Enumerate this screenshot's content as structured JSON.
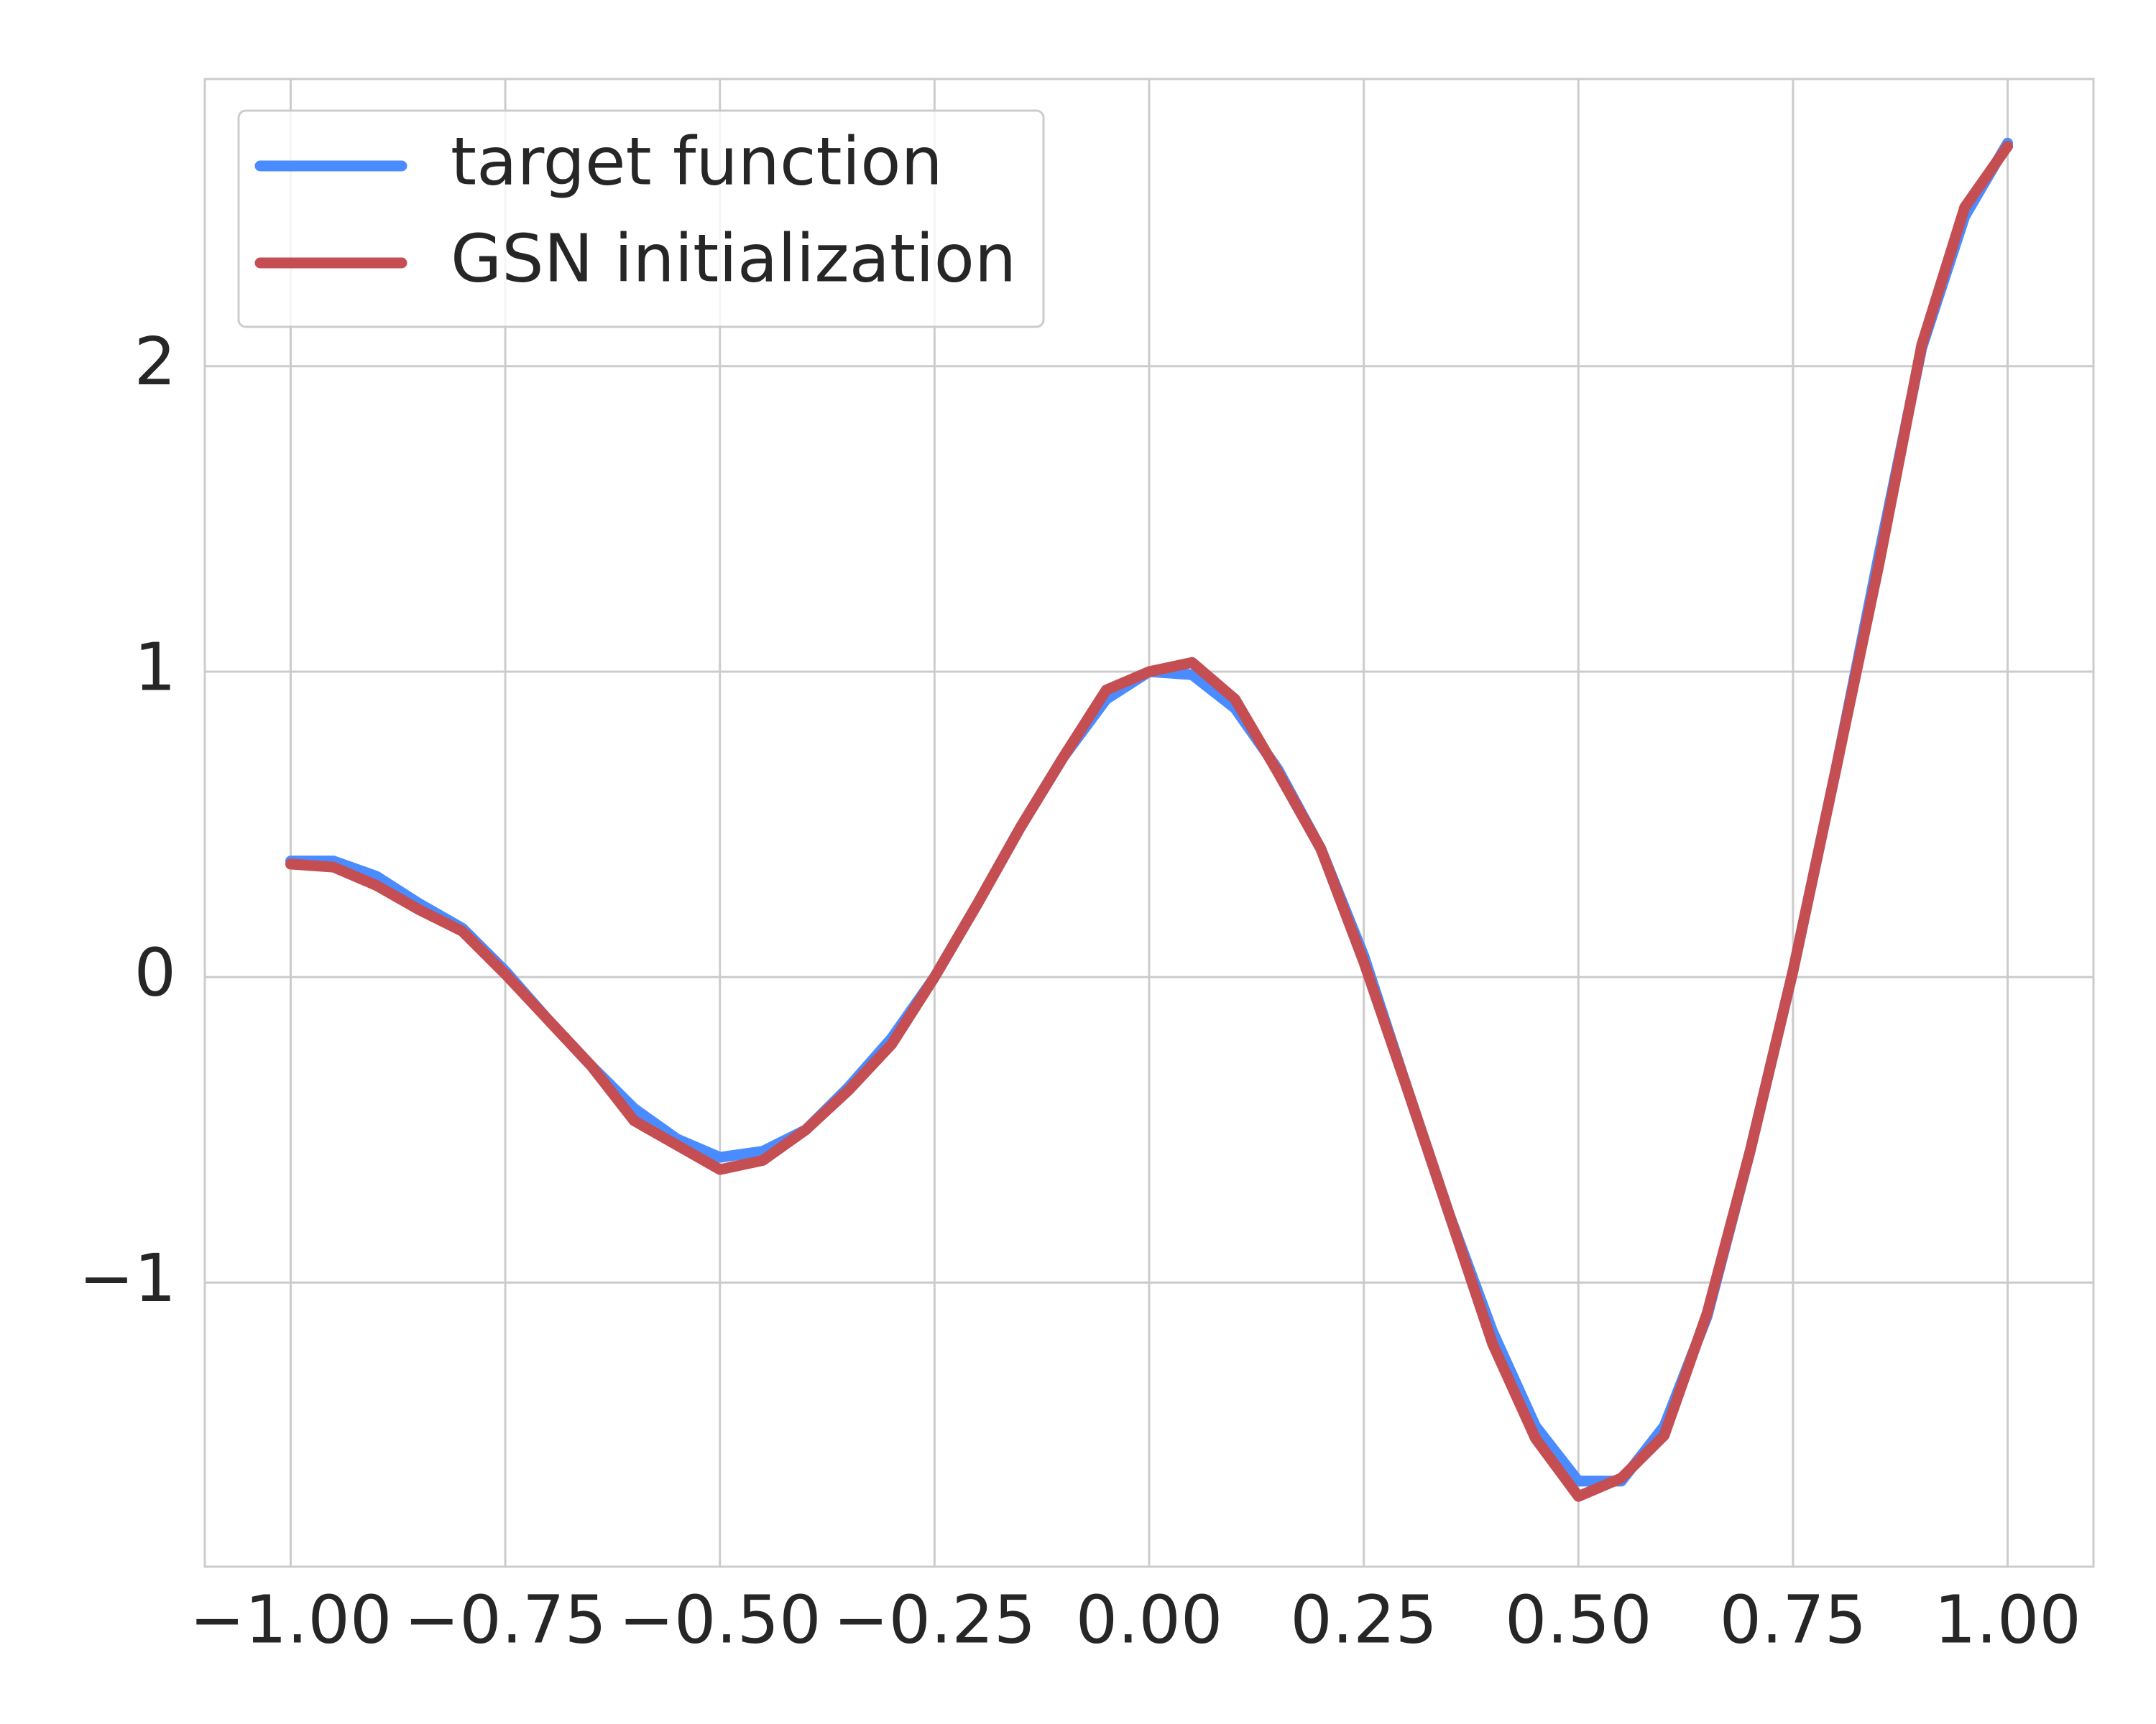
{
  "chart_data": {
    "type": "line",
    "x": [
      -1,
      -0.95,
      -0.9,
      -0.85,
      -0.8,
      -0.75,
      -0.7,
      -0.65,
      -0.6,
      -0.55,
      -0.5,
      -0.45,
      -0.4,
      -0.35,
      -0.3,
      -0.25,
      -0.2,
      -0.15,
      -0.1,
      -0.05,
      0,
      0.05,
      0.1,
      0.15,
      0.2,
      0.25,
      0.3,
      0.35,
      0.4,
      0.45,
      0.5,
      0.55,
      0.6,
      0.65,
      0.7,
      0.75,
      0.8,
      0.85,
      0.9,
      0.95,
      1
    ],
    "series": [
      {
        "name": "target function",
        "color": "#4a8cff",
        "values": [
          0.38,
          0.38,
          0.33,
          0.24,
          0.16,
          0.02,
          -0.14,
          -0.29,
          -0.43,
          -0.53,
          -0.59,
          -0.57,
          -0.5,
          -0.36,
          -0.2,
          0,
          0.24,
          0.49,
          0.72,
          0.91,
          1.0,
          0.99,
          0.88,
          0.68,
          0.42,
          0.07,
          -0.36,
          -0.78,
          -1.16,
          -1.47,
          -1.65,
          -1.65,
          -1.47,
          -1.11,
          -0.57,
          0.02,
          0.68,
          1.38,
          2.06,
          2.49,
          2.73
        ]
      },
      {
        "name": "GSN initialization",
        "color": "#c44e52",
        "values": [
          0.37,
          0.36,
          0.3,
          0.22,
          0.15,
          0.01,
          -0.14,
          -0.29,
          -0.47,
          -0.55,
          -0.63,
          -0.6,
          -0.5,
          -0.37,
          -0.22,
          0,
          0.24,
          0.49,
          0.72,
          0.94,
          1.0,
          1.03,
          0.91,
          0.67,
          0.42,
          0.05,
          -0.36,
          -0.78,
          -1.2,
          -1.51,
          -1.7,
          -1.64,
          -1.5,
          -1.1,
          -0.57,
          0.02,
          0.68,
          1.35,
          2.07,
          2.52,
          2.72
        ]
      }
    ],
    "xlim": [
      -1.1,
      1.1
    ],
    "ylim": [
      -1.93,
      2.94
    ],
    "xticks": [
      {
        "value": -1,
        "label": "−1.00"
      },
      {
        "value": -0.75,
        "label": "−0.75"
      },
      {
        "value": -0.5,
        "label": "−0.50"
      },
      {
        "value": -0.25,
        "label": "−0.25"
      },
      {
        "value": 0,
        "label": "0.00"
      },
      {
        "value": 0.25,
        "label": "0.25"
      },
      {
        "value": 0.5,
        "label": "0.50"
      },
      {
        "value": 0.75,
        "label": "0.75"
      },
      {
        "value": 1,
        "label": "1.00"
      }
    ],
    "yticks": [
      {
        "value": -1,
        "label": "−1"
      },
      0,
      1,
      2
    ],
    "grid": true,
    "legend": "upper left"
  }
}
